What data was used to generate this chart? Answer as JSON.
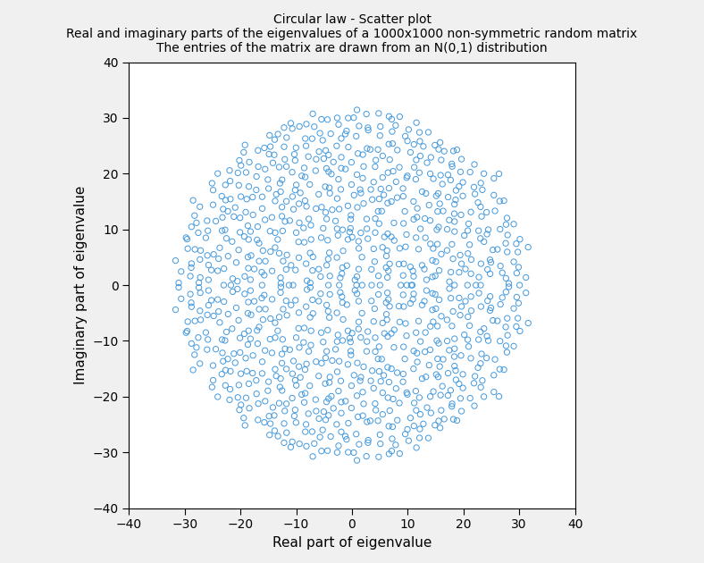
{
  "title_line1": "Circular law - Scatter plot",
  "title_line2": "Real and imaginary parts of the eigenvalues of a 1000x1000 non-symmetric random matrix",
  "title_line3": "The entries of the matrix are drawn from an N(0,1) distribution",
  "xlabel": "Real part of eigenvalue",
  "ylabel": "Imaginary part of eigenvalue",
  "xlim": [
    -40,
    40
  ],
  "ylim": [
    -40,
    40
  ],
  "xticks": [
    -40,
    -30,
    -20,
    -10,
    0,
    10,
    20,
    30,
    40
  ],
  "yticks": [
    -40,
    -30,
    -20,
    -10,
    0,
    10,
    20,
    30,
    40
  ],
  "n_matrix": 1000,
  "marker_color": "#4499DD",
  "marker_size": 4.5,
  "marker_linewidth": 0.7,
  "background_color": "#ffffff",
  "fig_background": "#f0f0f0",
  "random_seed": 42,
  "title_fontsize": 10,
  "label_fontsize": 11
}
